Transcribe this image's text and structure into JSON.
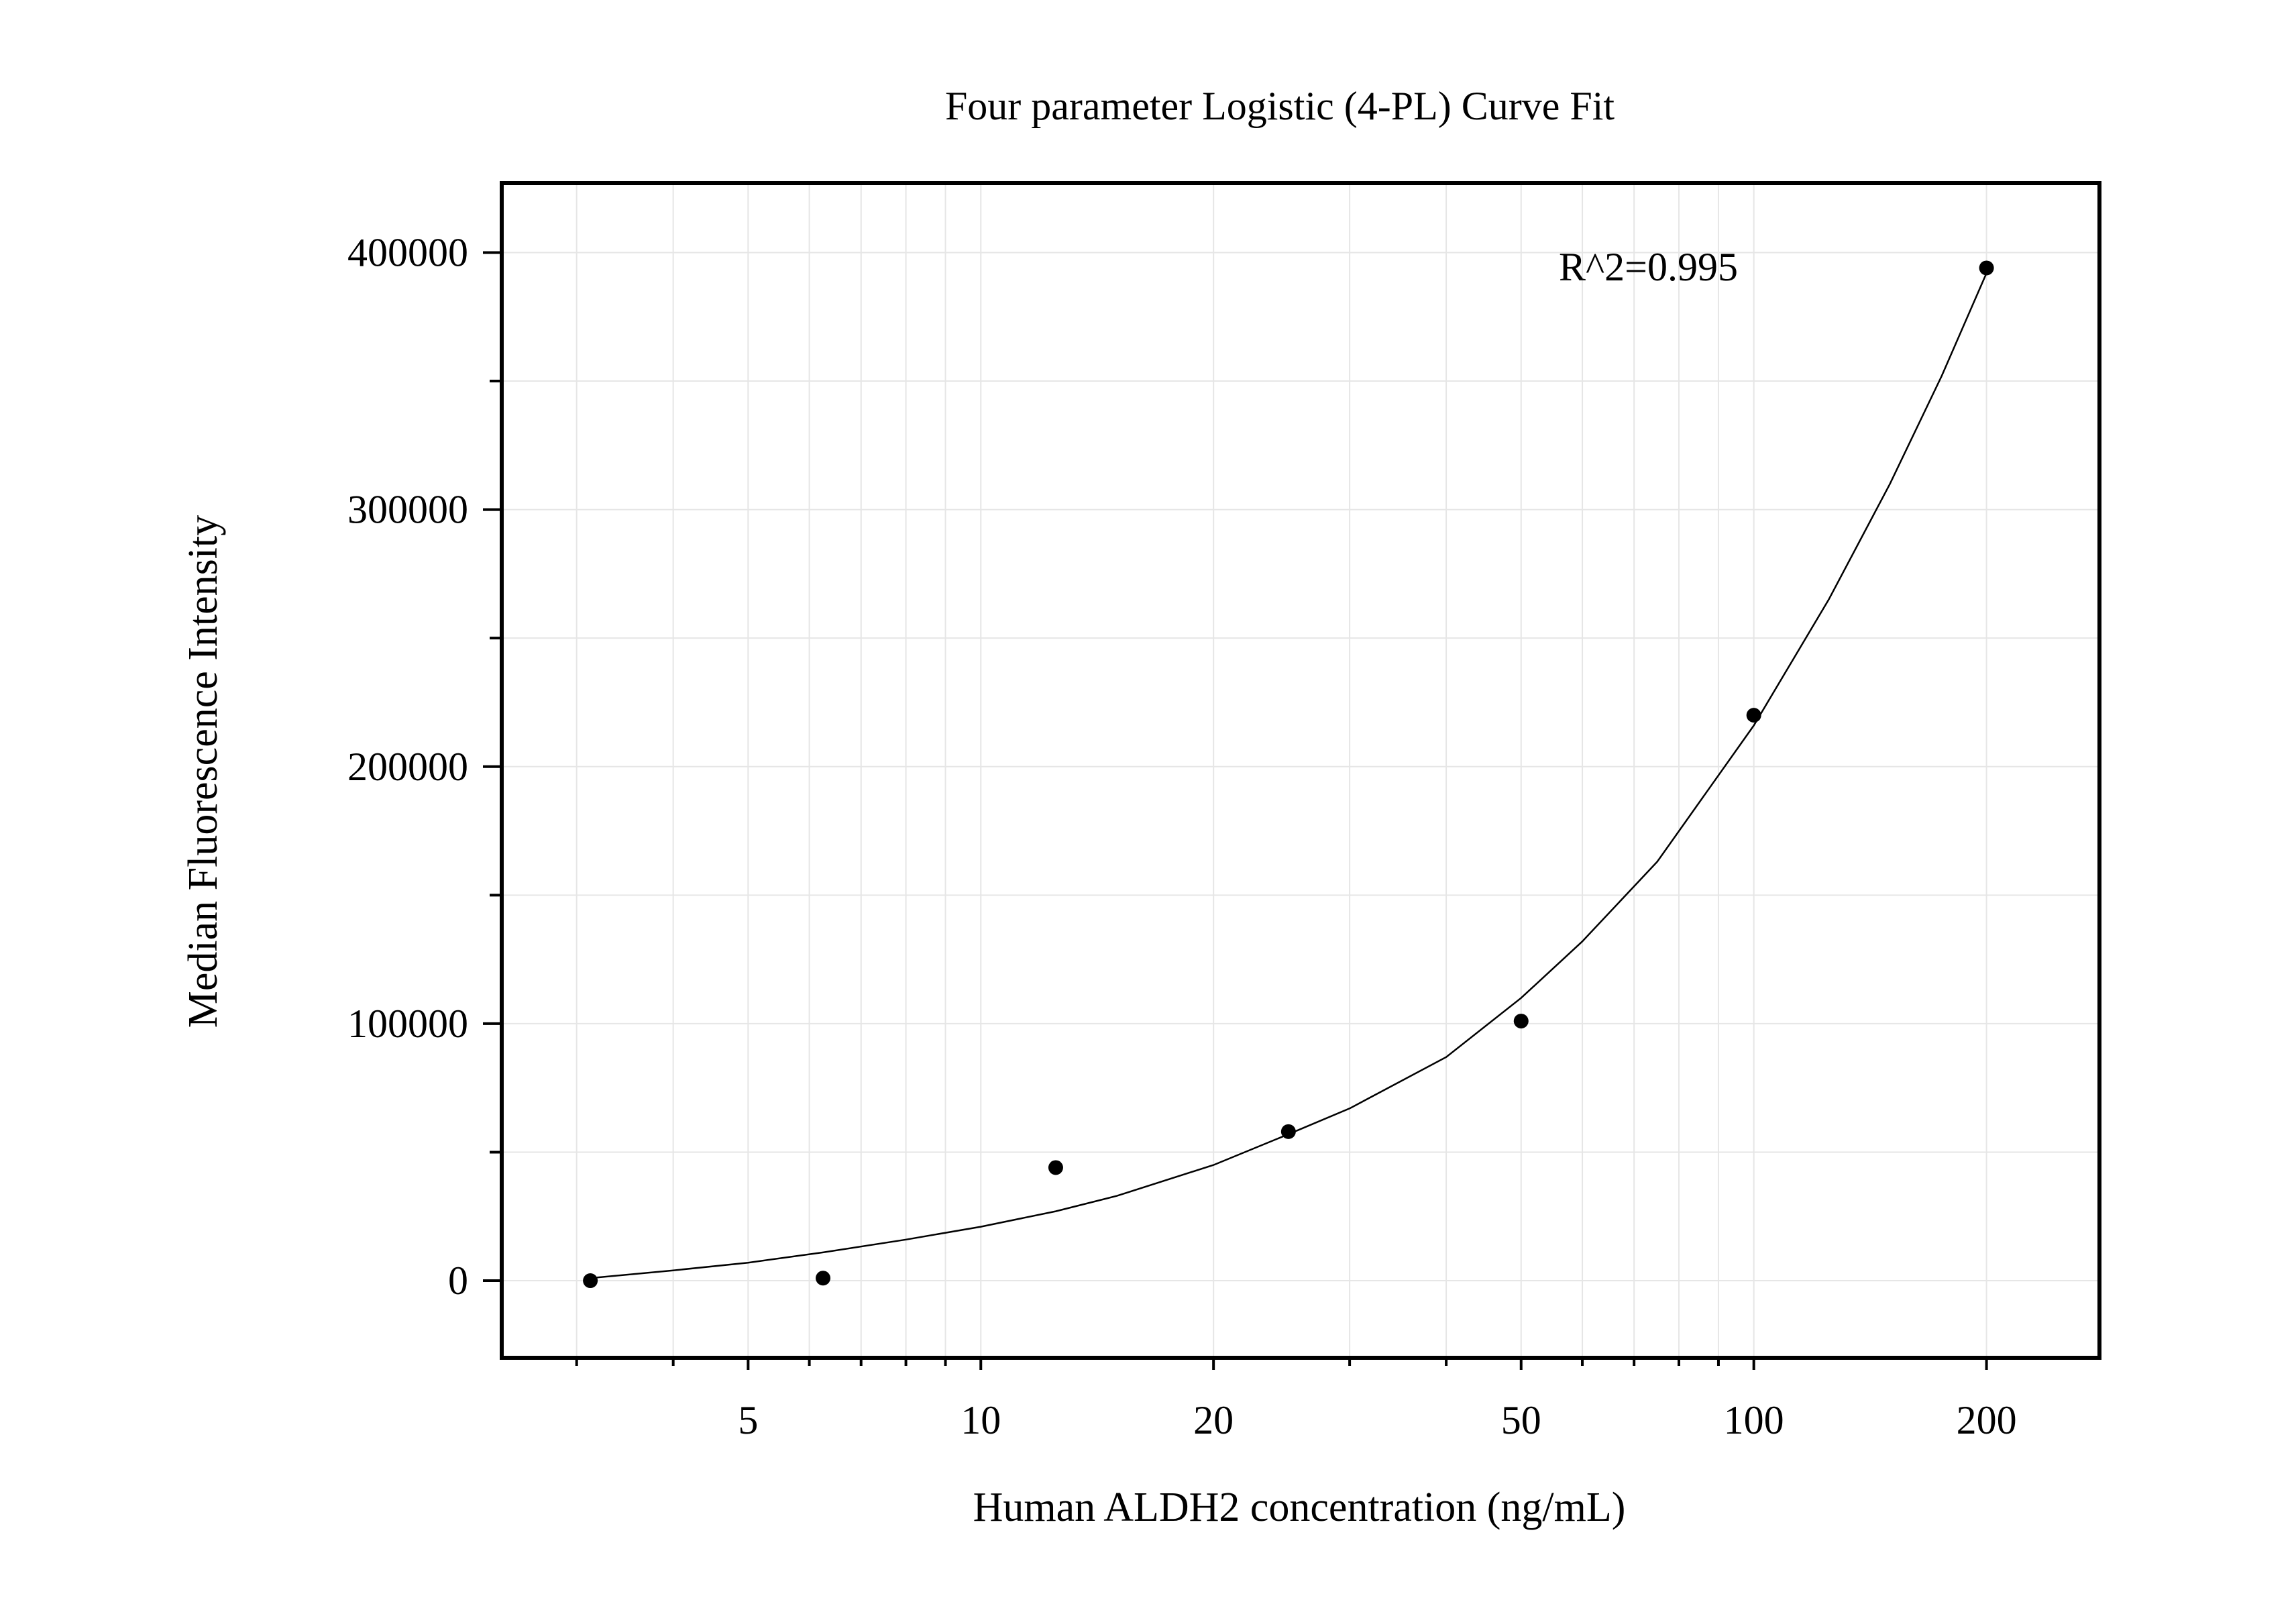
{
  "chart_data": {
    "type": "scatter",
    "title": "Four parameter Logistic (4-PL) Curve Fit",
    "xlabel": "Human ALDH2 concentration (ng/mL)",
    "ylabel": "Median Fluorescence Intensity",
    "x_scale": "log",
    "xlim": [
      2.4,
      280
    ],
    "ylim": [
      -30000,
      427000
    ],
    "x_ticks": [
      5,
      10,
      20,
      50,
      100,
      200
    ],
    "x_tick_labels": [
      "5",
      "10",
      "20",
      "50",
      "100",
      "200"
    ],
    "y_ticks": [
      0,
      100000,
      200000,
      300000,
      400000
    ],
    "y_tick_labels": [
      "0",
      "100000",
      "200000",
      "300000",
      "400000"
    ],
    "grid": true,
    "annotation": "R^2=0.995",
    "series": [
      {
        "x": [
          3.125,
          6.25,
          12.5,
          25,
          50,
          100,
          200
        ],
        "y": [
          0,
          1000,
          44000,
          58000,
          101000,
          220000,
          394000
        ]
      }
    ],
    "fit_curve": {
      "x": [
        3.125,
        4,
        5,
        6.25,
        8,
        10,
        12.5,
        15,
        20,
        25,
        30,
        40,
        50,
        60,
        75,
        100,
        125,
        150,
        175,
        200
      ],
      "y": [
        1000,
        4000,
        7000,
        11000,
        16000,
        21000,
        27000,
        33000,
        45000,
        57000,
        67000,
        87000,
        110000,
        132000,
        163000,
        216000,
        265000,
        310000,
        352000,
        392000
      ]
    },
    "colors": {
      "points": "#000000",
      "curve": "#000000",
      "grid": "#e6e6e6",
      "frame": "#000000"
    }
  }
}
